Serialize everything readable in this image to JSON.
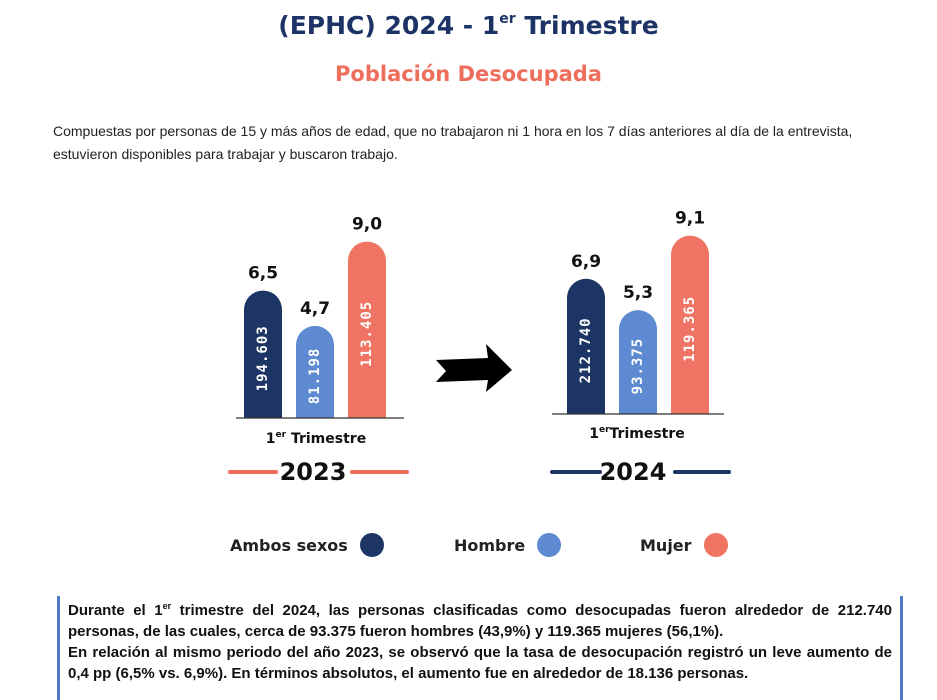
{
  "header": {
    "title_main": "(EPHC) 2024 - 1",
    "title_sup": "er",
    "title_rest": " Trimestre",
    "subtitle": "Población Desocupada"
  },
  "description": "Compuestas por personas de 15 y más años de edad, que no trabajaron ni 1 hora en los 7 días anteriores al día de la entrevista, estuvieron disponibles para trabajar y buscaron trabajo.",
  "colors": {
    "ambos": "#1c3564",
    "hombre": "#5d8ad0",
    "mujer": "#ef7464",
    "accent_2023": "#ee6e5c",
    "accent_2024": "#1c3564"
  },
  "chart_data": [
    {
      "type": "bar",
      "period_label_num": "1",
      "period_label_sup": "er",
      "period_label_text": " Trimestre",
      "year": "2023",
      "categories": [
        "Ambos sexos",
        "Hombre",
        "Mujer"
      ],
      "rates": [
        6.5,
        4.7,
        9.0
      ],
      "rate_labels": [
        "6,5",
        "4,7",
        "9,0"
      ],
      "counts": [
        194603,
        81198,
        113405
      ],
      "count_labels": [
        "194.603",
        "81.198",
        "113.405"
      ]
    },
    {
      "type": "bar",
      "period_label_num": "1",
      "period_label_sup": "er",
      "period_label_text": "Trimestre",
      "year": "2024",
      "categories": [
        "Ambos sexos",
        "Hombre",
        "Mujer"
      ],
      "rates": [
        6.9,
        5.3,
        9.1
      ],
      "rate_labels": [
        "6,9",
        "5,3",
        "9,1"
      ],
      "counts": [
        212740,
        93375,
        119365
      ],
      "count_labels": [
        "212.740",
        "93.375",
        "119.365"
      ]
    }
  ],
  "legend": [
    {
      "label": "Ambos sexos",
      "color": "#1c3564"
    },
    {
      "label": "Hombre",
      "color": "#5d8ad0"
    },
    {
      "label": "Mujer",
      "color": "#ef7464"
    }
  ],
  "note": {
    "line1_a": "Durante el 1",
    "line1_sup": "er",
    "line1_b": " trimestre del 2024, las personas clasificadas como desocupadas fueron alrededor de 212.740 personas, de las cuales, cerca de 93.375 fueron hombres (43,9%) y 119.365 mujeres (56,1%).",
    "line2": "En relación al mismo periodo del año 2023, se observó que la tasa de desocupación registró un leve aumento de 0,4 pp (6,5% vs. 6,9%). En términos absolutos, el aumento fue en alrededor de 18.136 personas."
  }
}
